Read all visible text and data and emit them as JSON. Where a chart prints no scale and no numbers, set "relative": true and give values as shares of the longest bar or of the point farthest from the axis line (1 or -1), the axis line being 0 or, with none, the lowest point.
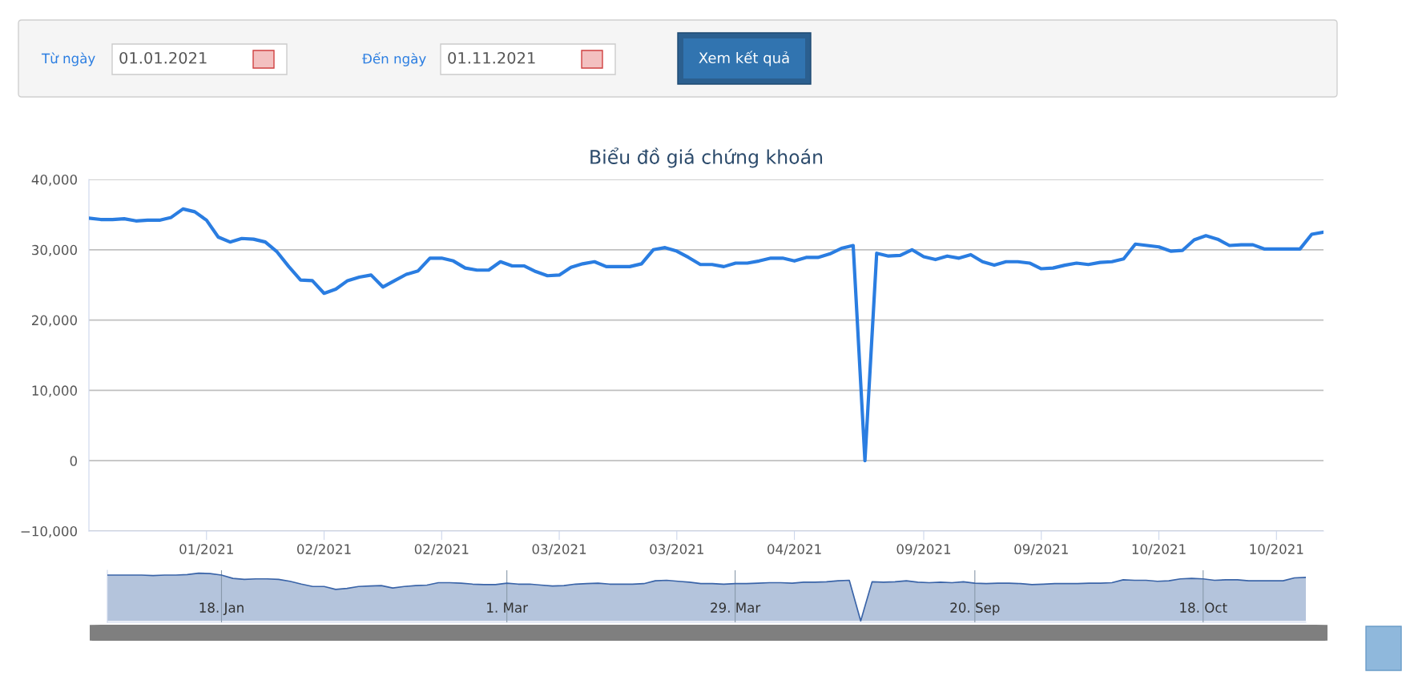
{
  "chart_data": [
    {
      "type": "other",
      "annotations": [
        "Từ ngày",
        "01.01.2021",
        "Đến ngày",
        "01.11.2021",
        "Xem kết quả"
      ]
    },
    {
      "type": "line",
      "title": "Biểu đồ giá chứng khoán",
      "grid": "y",
      "marker": "none",
      "line_style": "solid",
      "categories": [
        null,
        null,
        null,
        null,
        null,
        null,
        null,
        null,
        null,
        null,
        "01/2021",
        null,
        null,
        null,
        null,
        null,
        null,
        null,
        null,
        null,
        "02/2021",
        null,
        null,
        null,
        null,
        null,
        null,
        null,
        null,
        null,
        "02/2021",
        null,
        null,
        null,
        null,
        null,
        null,
        null,
        null,
        null,
        "03/2021",
        null,
        null,
        null,
        null,
        null,
        null,
        null,
        null,
        null,
        "03/2021",
        null,
        null,
        null,
        null,
        null,
        null,
        null,
        null,
        null,
        "04/2021",
        null,
        null,
        null,
        null,
        null,
        null,
        null,
        null,
        null,
        null,
        "09/2021",
        null,
        null,
        null,
        null,
        null,
        null,
        null,
        null,
        null,
        "09/2021",
        null,
        null,
        null,
        null,
        null,
        null,
        null,
        null,
        null,
        "10/2021",
        null,
        null,
        null,
        null,
        null,
        null,
        null,
        null,
        null,
        "10/2021",
        null,
        null,
        null,
        null
      ],
      "series": [
        {
          "color": "#2a7de1",
          "values": [
            34500,
            34300,
            34300,
            34400,
            34100,
            34200,
            34200,
            34600,
            35800,
            35400,
            34200,
            31800,
            31100,
            31600,
            31500,
            31100,
            29700,
            27600,
            25700,
            25600,
            23800,
            24400,
            25600,
            26100,
            26400,
            24700,
            25600,
            26500,
            27000,
            28800,
            28800,
            28400,
            27400,
            27100,
            27100,
            28300,
            27700,
            27700,
            26900,
            26300,
            26400,
            27500,
            28000,
            28300,
            27600,
            27600,
            27600,
            28000,
            30000,
            30300,
            29800,
            28900,
            27900,
            27900,
            27600,
            28100,
            28100,
            28400,
            28800,
            28800,
            28400,
            28900,
            28900,
            29400,
            30200,
            30600,
            0,
            29500,
            29100,
            29200,
            30000,
            29000,
            28600,
            29100,
            28800,
            29300,
            28300,
            27800,
            28300,
            28300,
            28100,
            27300,
            27400,
            27800,
            28100,
            27900,
            28200,
            28300,
            28700,
            30800,
            30600,
            30400,
            29800,
            29900,
            31400,
            32000,
            31500,
            30600,
            30700,
            30700,
            30100,
            30100,
            30100,
            30100,
            32200,
            32500
          ]
        }
      ],
      "ylim": [
        -10000,
        40000
      ],
      "yticks": [
        {
          "value": -10000,
          "label": "−10,000"
        },
        {
          "value": 0,
          "label": "0"
        },
        {
          "value": 10000,
          "label": "10,000"
        },
        {
          "value": 20000,
          "label": "20,000"
        },
        {
          "value": 30000,
          "label": "30,000"
        },
        {
          "value": 40000,
          "label": "40,000"
        }
      ]
    },
    {
      "type": "area",
      "grid": "x",
      "tick_labels": "x",
      "categories": [
        null,
        null,
        null,
        null,
        null,
        null,
        null,
        null,
        null,
        null,
        "18. Jan",
        null,
        null,
        null,
        null,
        null,
        null,
        null,
        null,
        null,
        null,
        null,
        null,
        null,
        null,
        null,
        null,
        null,
        null,
        null,
        null,
        null,
        null,
        null,
        null,
        "1. Mar",
        null,
        null,
        null,
        null,
        null,
        null,
        null,
        null,
        null,
        null,
        null,
        null,
        null,
        null,
        null,
        null,
        null,
        null,
        null,
        "29. Mar",
        null,
        null,
        null,
        null,
        null,
        null,
        null,
        null,
        null,
        null,
        null,
        null,
        null,
        null,
        null,
        null,
        null,
        null,
        null,
        null,
        "20. Sep",
        null,
        null,
        null,
        null,
        null,
        null,
        null,
        null,
        null,
        null,
        null,
        null,
        null,
        null,
        null,
        null,
        null,
        null,
        null,
        "18. Oct",
        null,
        null,
        null,
        null,
        null,
        null,
        null,
        null,
        null
      ],
      "series": [
        {
          "color": "#3a64a8",
          "values": [
            0.96,
            0.96,
            0.96,
            0.96,
            0.95,
            0.96,
            0.96,
            0.97,
            1,
            0.99,
            0.96,
            0.89,
            0.87,
            0.88,
            0.88,
            0.87,
            0.83,
            0.77,
            0.72,
            0.72,
            0.66,
            0.68,
            0.72,
            0.73,
            0.74,
            0.69,
            0.72,
            0.74,
            0.75,
            0.8,
            0.8,
            0.79,
            0.77,
            0.76,
            0.76,
            0.79,
            0.77,
            0.77,
            0.75,
            0.73,
            0.74,
            0.77,
            0.78,
            0.79,
            0.77,
            0.77,
            0.77,
            0.78,
            0.84,
            0.85,
            0.83,
            0.81,
            0.78,
            0.78,
            0.77,
            0.78,
            0.78,
            0.79,
            0.8,
            0.8,
            0.79,
            0.81,
            0.81,
            0.82,
            0.84,
            0.85,
            0,
            0.82,
            0.81,
            0.82,
            0.84,
            0.81,
            0.8,
            0.81,
            0.8,
            0.82,
            0.79,
            0.78,
            0.79,
            0.79,
            0.78,
            0.76,
            0.77,
            0.78,
            0.78,
            0.78,
            0.79,
            0.79,
            0.8,
            0.86,
            0.85,
            0.85,
            0.83,
            0.84,
            0.88,
            0.89,
            0.88,
            0.85,
            0.86,
            0.86,
            0.84,
            0.84,
            0.84,
            0.84,
            0.9,
            0.91
          ]
        }
      ],
      "relative": true
    }
  ]
}
